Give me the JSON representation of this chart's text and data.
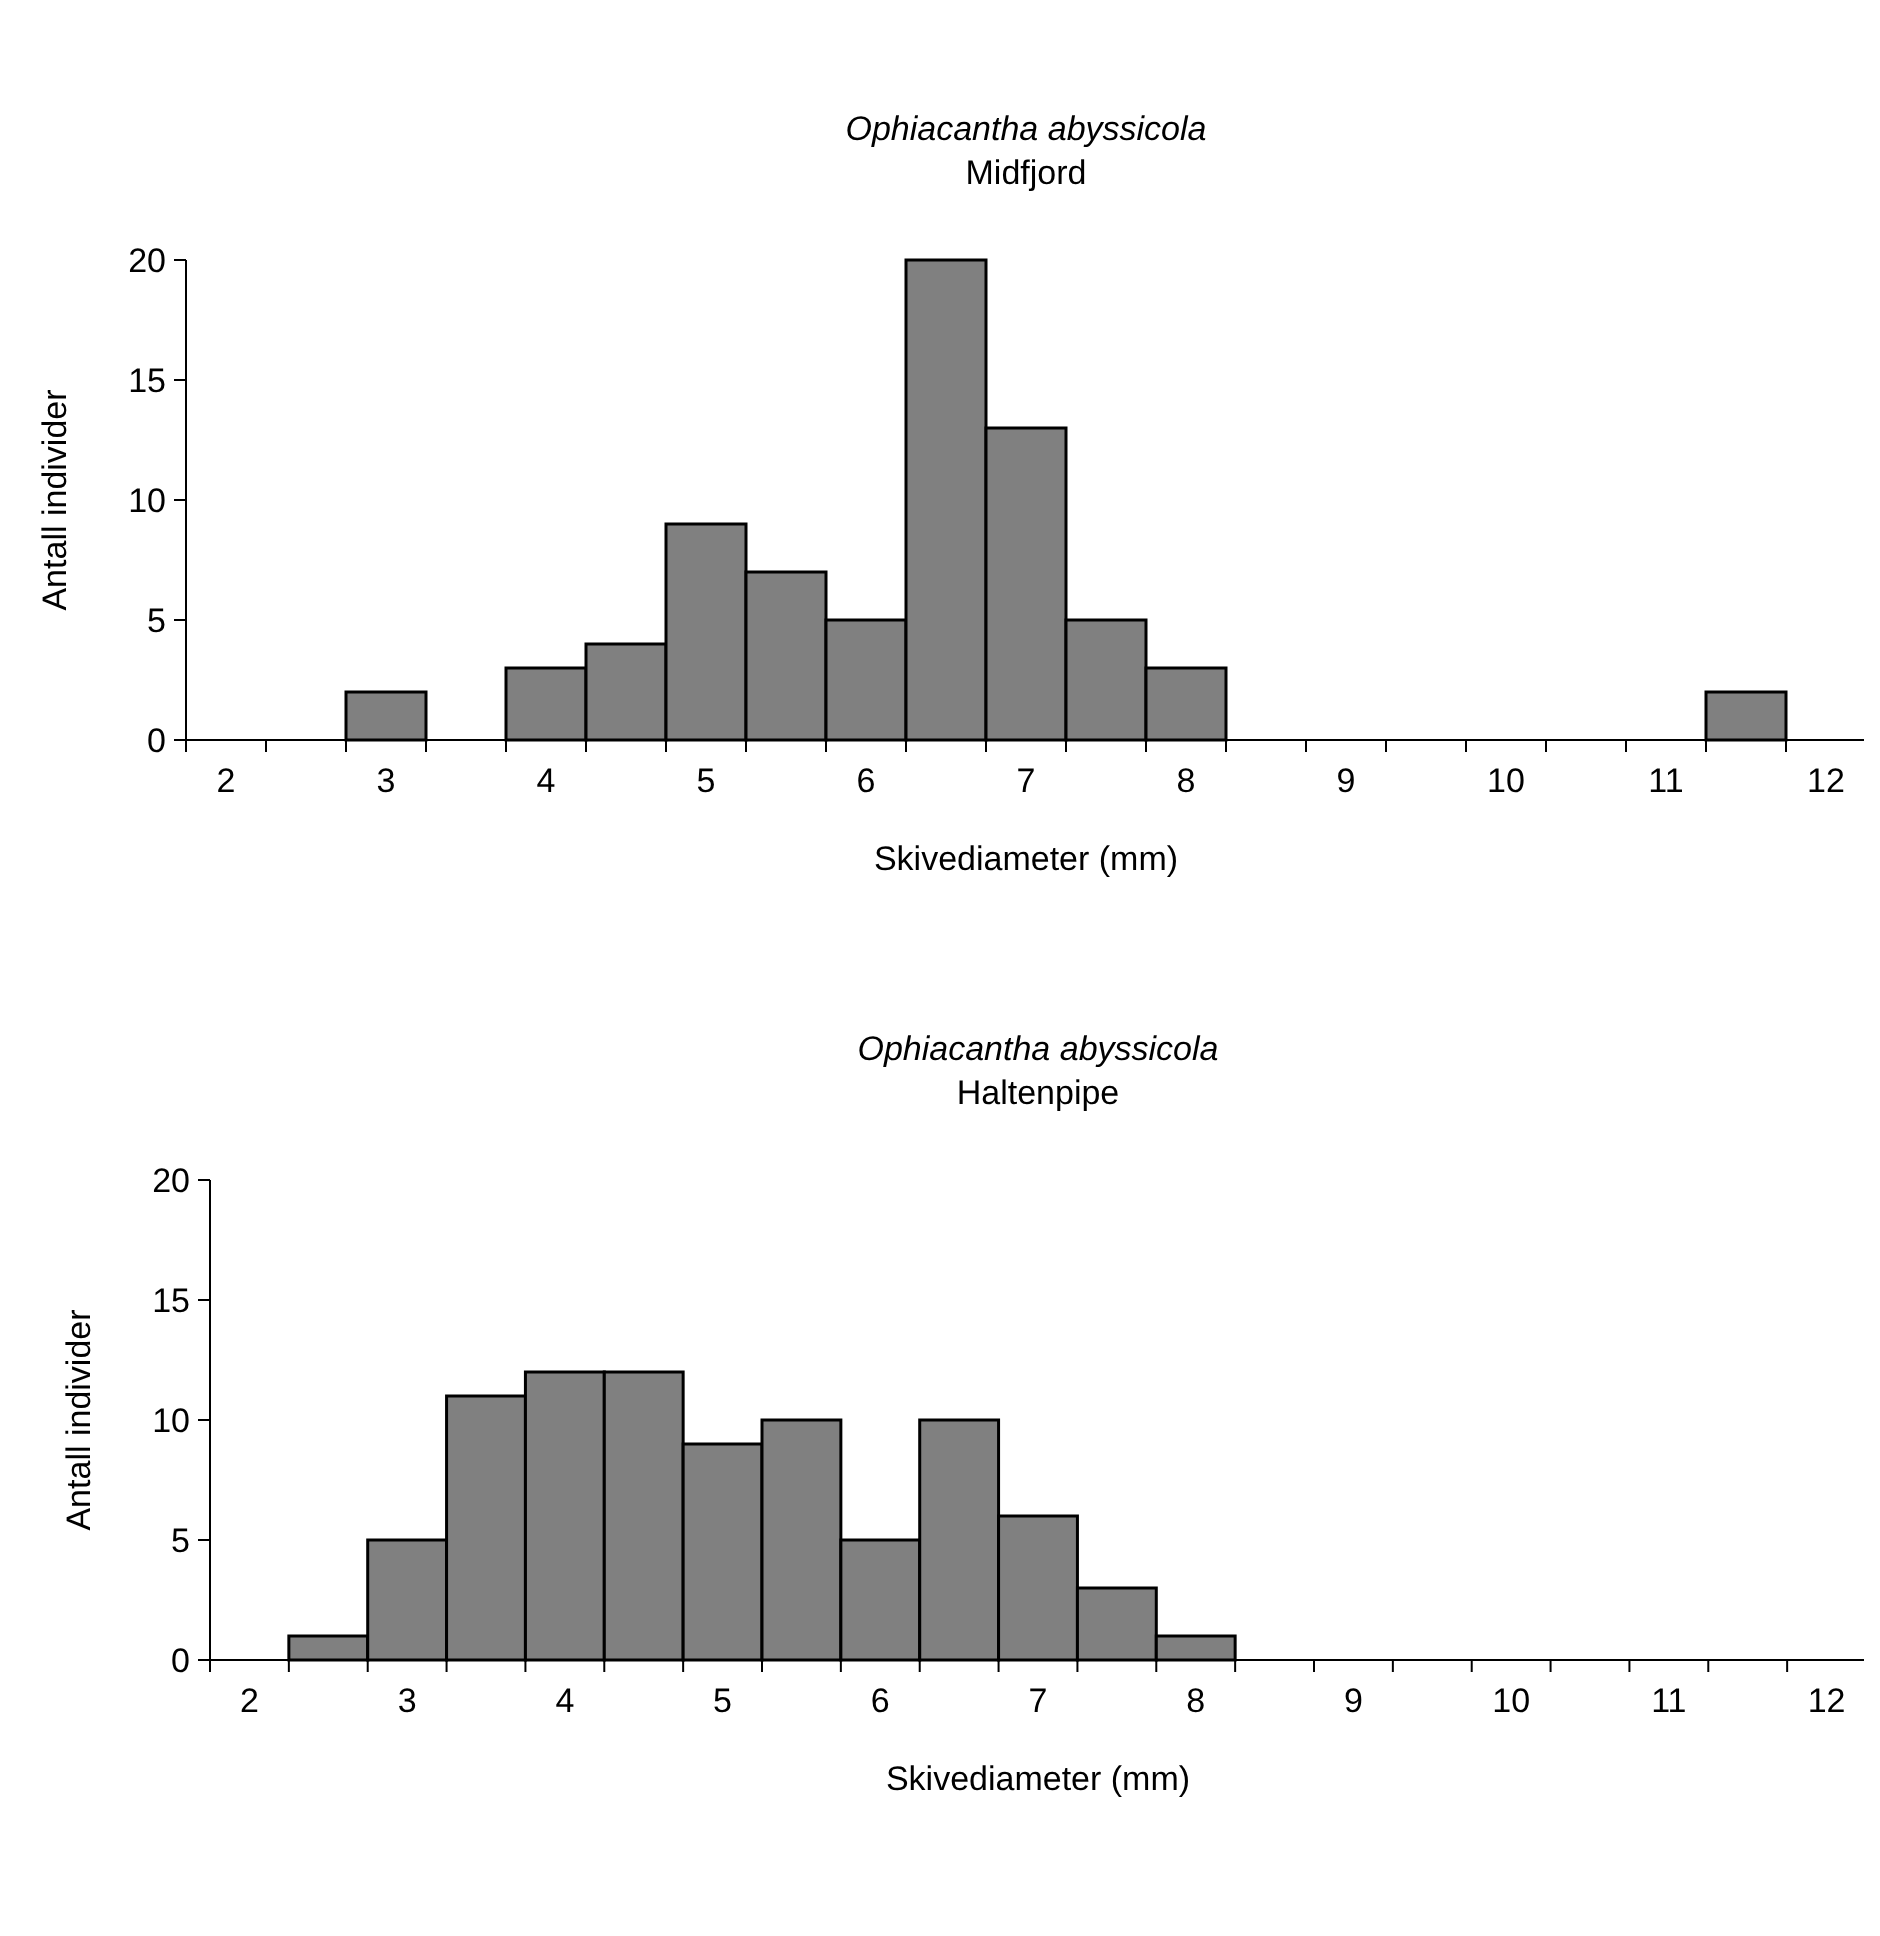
{
  "chart_data": [
    {
      "type": "bar",
      "title": "Ophiacantha abyssicola",
      "subtitle": "Midfjord",
      "xlabel": "Skivediameter (mm)",
      "ylabel": "Antall individer",
      "categories": [
        "2",
        null,
        "3",
        null,
        "4",
        null,
        "5",
        null,
        "6",
        null,
        "7",
        null,
        "8",
        null,
        "9",
        null,
        "10",
        null,
        "11",
        null,
        "12"
      ],
      "series": [
        {
          "color": "#808080",
          "values": [
            0,
            0,
            2,
            0,
            3,
            4,
            9,
            7,
            5,
            20,
            13,
            5,
            3,
            0,
            0,
            0,
            0,
            0,
            0,
            2,
            0
          ]
        }
      ],
      "ylim": [
        0,
        20
      ],
      "yticks": [
        0,
        5,
        10,
        15,
        20
      ]
    },
    {
      "type": "bar",
      "title": "Ophiacantha abyssicola",
      "subtitle": "Haltenpipe",
      "xlabel": "Skivediameter (mm)",
      "ylabel": "Antall individer",
      "categories": [
        "2",
        null,
        "3",
        null,
        "4",
        null,
        "5",
        null,
        "6",
        null,
        "7",
        null,
        "8",
        null,
        "9",
        null,
        "10",
        null,
        "11",
        null,
        "12"
      ],
      "series": [
        {
          "color": "#808080",
          "values": [
            0,
            1,
            5,
            11,
            12,
            12,
            9,
            10,
            5,
            10,
            6,
            3,
            1,
            0,
            0,
            0,
            0,
            0,
            0,
            0,
            0
          ]
        }
      ],
      "ylim": [
        0,
        20
      ],
      "yticks": [
        0,
        5,
        10,
        15,
        20
      ]
    }
  ]
}
